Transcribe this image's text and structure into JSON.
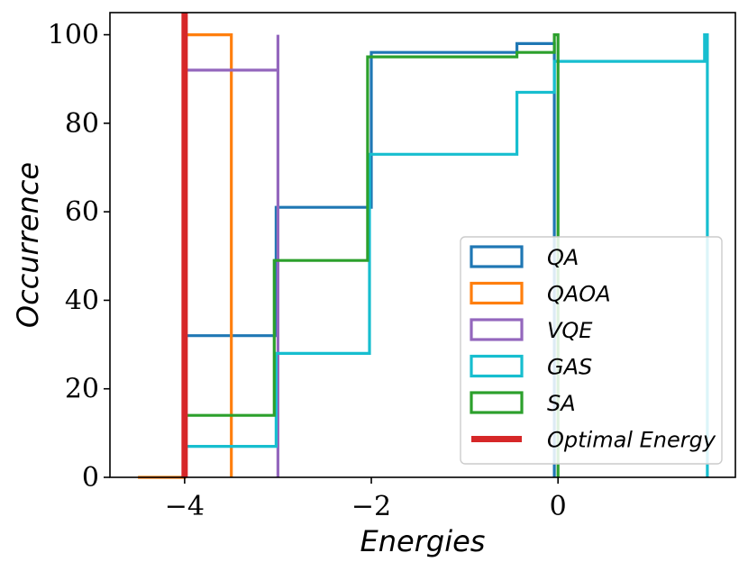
{
  "chart_data": {
    "type": "step-histogram",
    "xlabel": "Energies",
    "ylabel": "Occurrence",
    "xlim": [
      -4.8,
      1.9
    ],
    "ylim": [
      0,
      105
    ],
    "xticks": [
      -4,
      -2,
      0
    ],
    "xtick_labels": [
      "−4",
      "−2",
      "0"
    ],
    "yticks": [
      0,
      20,
      40,
      60,
      80,
      100
    ],
    "ytick_labels": [
      "0",
      "20",
      "40",
      "60",
      "80",
      "100"
    ],
    "legend_position": "lower-right",
    "series": [
      {
        "name": "QA",
        "color": "#1f77b4",
        "points": [
          [
            -4.0,
            0
          ],
          [
            -4.0,
            32
          ],
          [
            -3.02,
            32
          ],
          [
            -3.02,
            61
          ],
          [
            -2.0,
            61
          ],
          [
            -2.0,
            96
          ],
          [
            -0.44,
            96
          ],
          [
            -0.44,
            98
          ],
          [
            -0.04,
            98
          ],
          [
            -0.04,
            0
          ]
        ]
      },
      {
        "name": "QAOA",
        "color": "#ff7f0e",
        "points": [
          [
            -4.5,
            0
          ],
          [
            -4.0,
            0
          ],
          [
            -4.0,
            100
          ],
          [
            -3.5,
            100
          ],
          [
            -3.5,
            0
          ]
        ]
      },
      {
        "name": "VQE",
        "color": "#9467bd",
        "points": [
          [
            -4.0,
            0
          ],
          [
            -4.0,
            92
          ],
          [
            -3.0,
            92
          ],
          [
            -3.0,
            100
          ],
          [
            -3.0,
            0
          ]
        ]
      },
      {
        "name": "GAS",
        "color": "#17becf",
        "points": [
          [
            -4.0,
            0
          ],
          [
            -4.0,
            7
          ],
          [
            -3.02,
            7
          ],
          [
            -3.02,
            28
          ],
          [
            -2.02,
            28
          ],
          [
            -2.02,
            73
          ],
          [
            -0.44,
            73
          ],
          [
            -0.44,
            87
          ],
          [
            -0.04,
            87
          ],
          [
            -0.04,
            94
          ],
          [
            1.57,
            94
          ],
          [
            1.57,
            100
          ],
          [
            1.6,
            100
          ],
          [
            1.6,
            0
          ]
        ]
      },
      {
        "name": "SA",
        "color": "#2ca02c",
        "points": [
          [
            -4.0,
            0
          ],
          [
            -4.0,
            14
          ],
          [
            -3.04,
            14
          ],
          [
            -3.04,
            49
          ],
          [
            -2.04,
            49
          ],
          [
            -2.04,
            95
          ],
          [
            -0.44,
            95
          ],
          [
            -0.44,
            96
          ],
          [
            -0.04,
            96
          ],
          [
            -0.04,
            100
          ],
          [
            0.0,
            100
          ],
          [
            0.0,
            0
          ]
        ]
      }
    ],
    "optimal_energy": {
      "name": "Optimal Energy",
      "value": -4.0,
      "color": "#d62728"
    }
  }
}
